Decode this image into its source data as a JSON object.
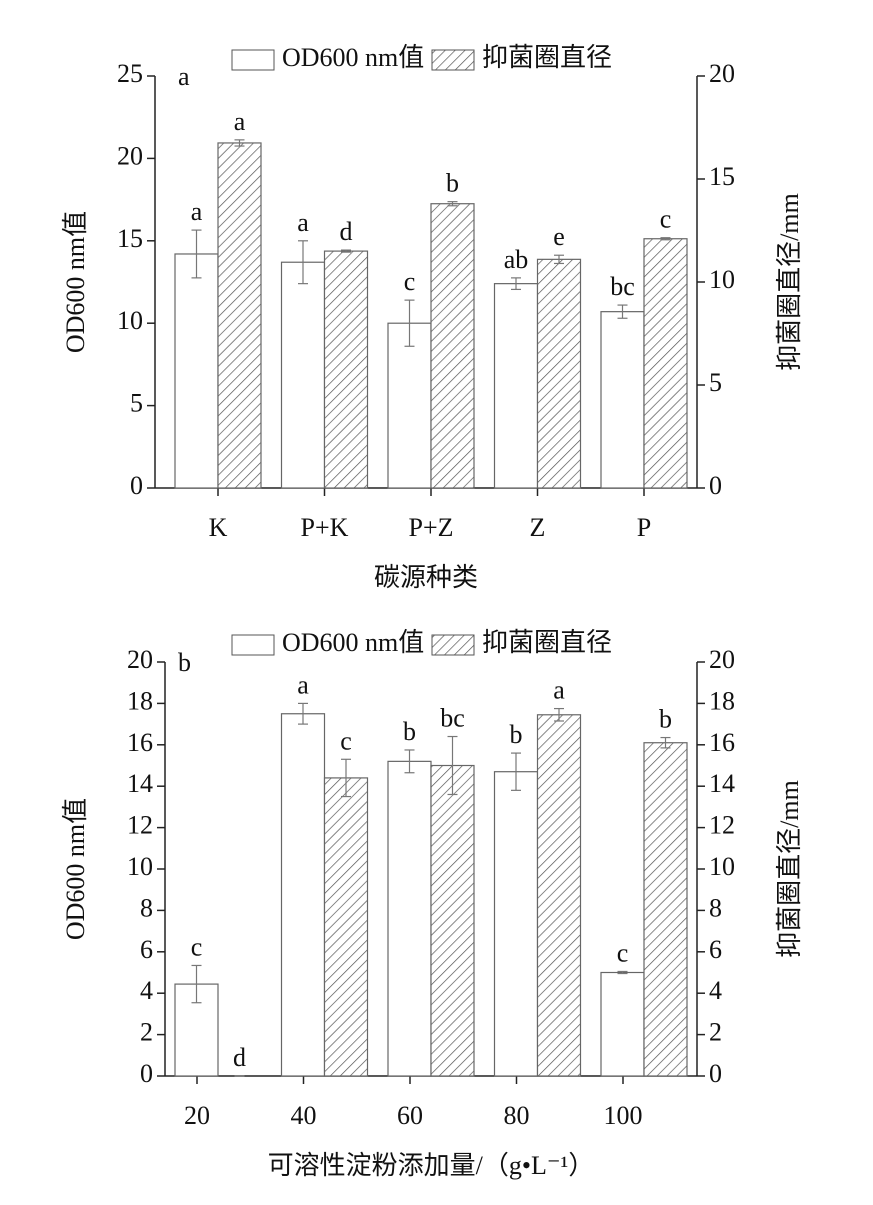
{
  "chart_data": [
    {
      "type": "bar",
      "panel_label": "a",
      "xlabel": "碳源种类",
      "ylabel": "OD600 nm值",
      "y2label": "抑菌圈直径/mm",
      "categories": [
        "K",
        "P+K",
        "P+Z",
        "Z",
        "P"
      ],
      "ylim": [
        0,
        25
      ],
      "yticks": [
        0,
        5,
        10,
        15,
        20,
        25
      ],
      "y2lim": [
        0,
        20
      ],
      "y2ticks": [
        0,
        5,
        10,
        15,
        20
      ],
      "series": [
        {
          "name": "OD600 nm值",
          "color": "#ffffff",
          "hatch": false,
          "values": [
            14.2,
            13.7,
            10.0,
            12.4,
            10.7
          ],
          "errors": [
            1.45,
            1.3,
            1.4,
            0.35,
            0.4
          ],
          "letters": [
            "a",
            "a",
            "c",
            "ab",
            "bc"
          ]
        },
        {
          "name": "抑菌圈直径",
          "color": "#ffffff",
          "hatch": true,
          "axis": "y2",
          "values": [
            16.75,
            11.5,
            13.8,
            11.1,
            12.1
          ],
          "errors": [
            0.15,
            0.05,
            0.1,
            0.2,
            0.05
          ],
          "letters": [
            "a",
            "d",
            "b",
            "e",
            "c"
          ]
        }
      ]
    },
    {
      "type": "bar",
      "panel_label": "b",
      "xlabel": "可溶性淀粉添加量/（g•L⁻¹）",
      "ylabel": "OD600 nm值",
      "y2label": "抑菌圈直径/mm",
      "categories": [
        20,
        40,
        60,
        80,
        100
      ],
      "ylim": [
        0,
        20
      ],
      "yticks": [
        0,
        2,
        4,
        6,
        8,
        10,
        12,
        14,
        16,
        18,
        20
      ],
      "y2lim": [
        0,
        20
      ],
      "y2ticks": [
        0,
        2,
        4,
        6,
        8,
        10,
        12,
        14,
        16,
        18,
        20
      ],
      "series": [
        {
          "name": "OD600 nm值",
          "color": "#ffffff",
          "hatch": false,
          "values": [
            4.44,
            17.5,
            15.2,
            14.7,
            5.0
          ],
          "errors": [
            0.9,
            0.5,
            0.55,
            0.9,
            0.05
          ],
          "letters": [
            "c",
            "a",
            "b",
            "b",
            "c"
          ]
        },
        {
          "name": "抑菌圈直径",
          "color": "#ffffff",
          "hatch": true,
          "axis": "y2",
          "values": [
            0,
            14.4,
            15.0,
            17.45,
            16.1
          ],
          "errors": [
            0,
            0.9,
            1.4,
            0.3,
            0.25
          ],
          "letters": [
            "d",
            "c",
            "bc",
            "a",
            "b"
          ]
        }
      ]
    }
  ]
}
